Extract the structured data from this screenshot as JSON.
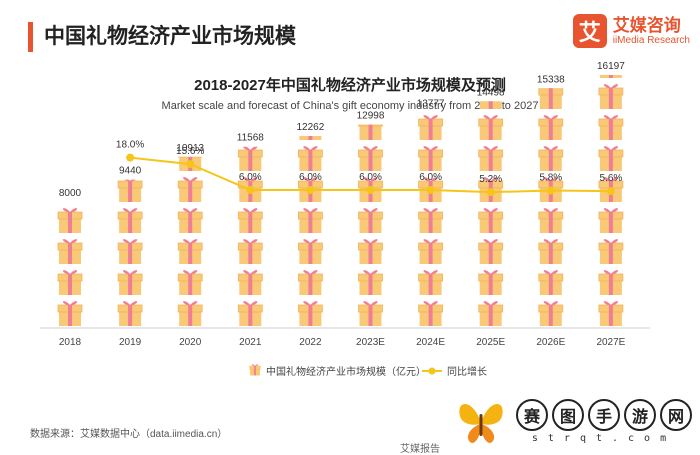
{
  "header": {
    "title": "中国礼物经济产业市场规模"
  },
  "brand": {
    "mark": "艾",
    "name_cn": "艾媒咨询",
    "name_en": "iiMedia Research"
  },
  "chart_data": {
    "type": "bar",
    "title": "2018-2027年中国礼物经济产业市场规模及预测",
    "subtitle": "Market scale and forecast of China's gift economy industry from 2018 to 2027",
    "categories": [
      "2018",
      "2019",
      "2020",
      "2021",
      "2022",
      "2023E",
      "2024E",
      "2025E",
      "2026E",
      "2027E"
    ],
    "series": [
      {
        "name": "中国礼物经济产业市场规模（亿元）",
        "type": "pictorial-bar",
        "values": [
          8000,
          9440,
          10913,
          11568,
          12262,
          12998,
          13777,
          14498,
          15338,
          16197
        ]
      },
      {
        "name": "同比增长",
        "type": "line",
        "values": [
          null,
          18.0,
          15.6,
          6.0,
          6.0,
          6.0,
          6.0,
          5.2,
          5.8,
          5.6
        ],
        "labels": [
          "",
          "18.0%",
          "15.6%",
          "6.0%",
          "6.0%",
          "6.0%",
          "6.0%",
          "5.2%",
          "5.8%",
          "5.6%"
        ]
      }
    ],
    "legend_position": "bottom",
    "grid": false,
    "colors": {
      "gift": "#f9c978",
      "gift_ribbon": "#f07f93",
      "line": "#f5c518",
      "axis": "#cccccc"
    }
  },
  "footer": {
    "source": "数据来源：艾媒数据中心（data.iimedia.cn）",
    "report": "艾媒报告"
  },
  "watermark": {
    "chars": [
      "赛",
      "图",
      "手",
      "游",
      "网"
    ],
    "sub": "strqt.com"
  }
}
